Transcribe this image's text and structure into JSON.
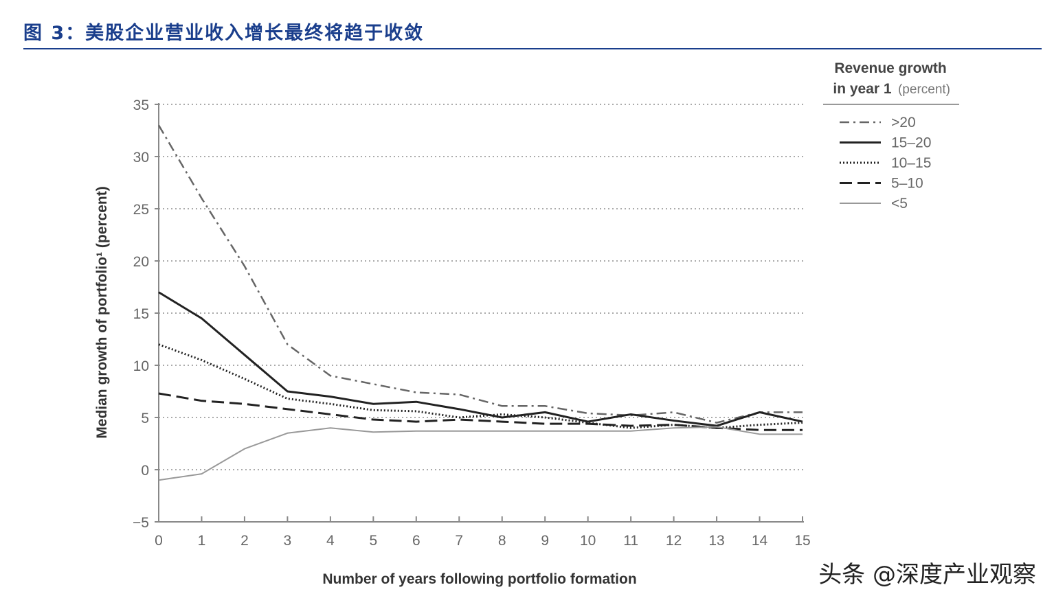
{
  "title": "图 3：美股企业营业收入增长最终将趋于收敛",
  "watermark": "头条 @深度产业观察",
  "chart_data": {
    "type": "line",
    "xlabel": "Number of years following portfolio formation",
    "ylabel": "Median growth of portfolio¹ (percent)",
    "xlim": [
      0,
      15
    ],
    "ylim": [
      -5,
      35
    ],
    "x_ticks": [
      "0",
      "1",
      "2",
      "3",
      "4",
      "5",
      "6",
      "7",
      "8",
      "9",
      "10",
      "11",
      "12",
      "13",
      "14",
      "15"
    ],
    "y_ticks": [
      "35",
      "30",
      "25",
      "20",
      "15",
      "10",
      "5",
      "0",
      "−5"
    ],
    "grid": "horizontal dotted",
    "legend_title": "Revenue growth",
    "legend_title2": "in year 1",
    "legend_title_unit": "(percent)",
    "legend_position": "top-right",
    "x": [
      0,
      1,
      2,
      3,
      4,
      5,
      6,
      7,
      8,
      9,
      10,
      11,
      12,
      13,
      14,
      15
    ],
    "series": [
      {
        "name": ">20",
        "style": "dashdot",
        "color": "#666666",
        "values": [
          33,
          26,
          19.5,
          12,
          9,
          8.2,
          7.4,
          7.2,
          6.1,
          6.1,
          5.4,
          5.2,
          5.5,
          4.5,
          5.5,
          5.5
        ]
      },
      {
        "name": "15–20",
        "style": "solid-thick",
        "color": "#222222",
        "values": [
          17,
          14.5,
          11,
          7.5,
          7,
          6.3,
          6.5,
          5.8,
          5,
          5.5,
          4.6,
          5.3,
          4.7,
          4.2,
          5.5,
          4.6
        ]
      },
      {
        "name": "10–15",
        "style": "dotted",
        "color": "#222222",
        "values": [
          12,
          10.5,
          8.7,
          6.8,
          6.3,
          5.7,
          5.6,
          5,
          5.3,
          5,
          4.5,
          4,
          4.3,
          4,
          4.3,
          4.5
        ]
      },
      {
        "name": "5–10",
        "style": "dashed",
        "color": "#222222",
        "values": [
          7.3,
          6.6,
          6.3,
          5.8,
          5.3,
          4.8,
          4.6,
          4.8,
          4.6,
          4.4,
          4.4,
          4.2,
          4.3,
          4,
          3.8,
          3.8
        ]
      },
      {
        "name": "<5",
        "style": "thin",
        "color": "#999999",
        "values": [
          -1,
          -0.4,
          2,
          3.5,
          4,
          3.6,
          3.7,
          3.7,
          3.7,
          3.7,
          3.7,
          3.7,
          4,
          4.1,
          3.4,
          3.4
        ]
      }
    ]
  }
}
